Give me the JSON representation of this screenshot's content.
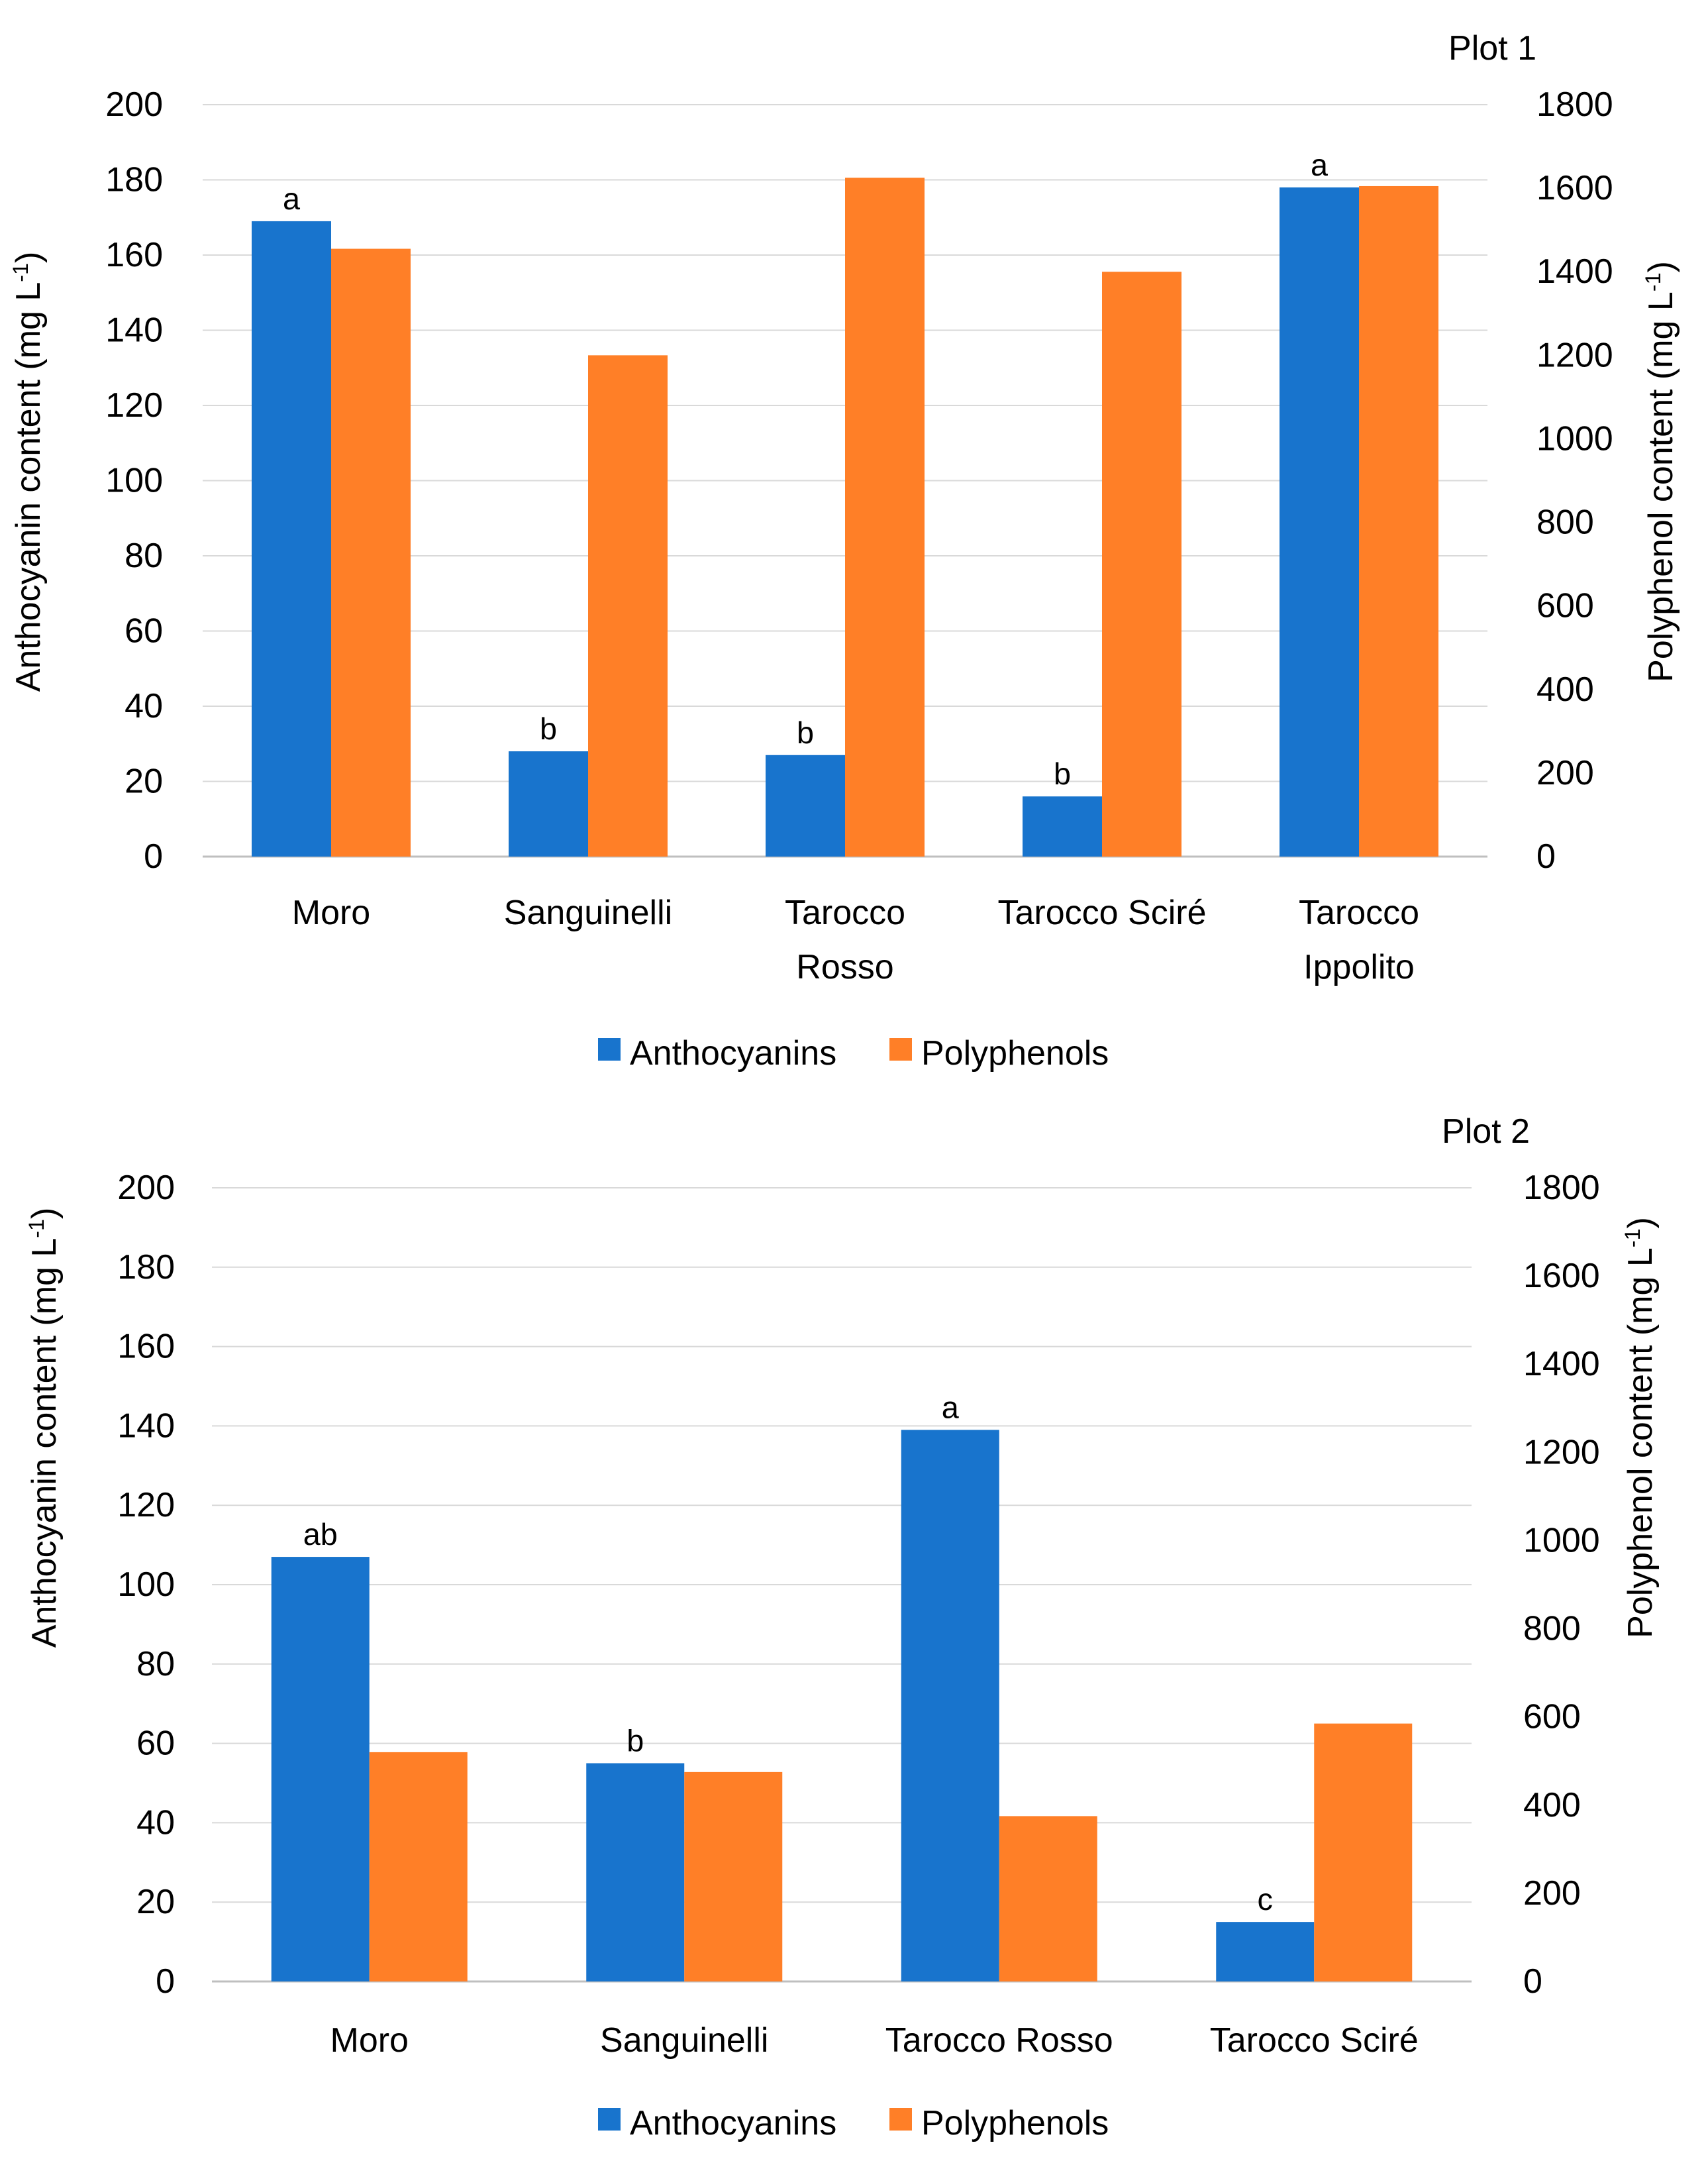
{
  "chart_data": [
    {
      "type": "bar",
      "title": "Plot 1",
      "categories": [
        "Moro",
        "Sanguinelli",
        "Tarocco Rosso",
        "Tarocco Sciré",
        "Tarocco Ippolito"
      ],
      "category_lines": [
        [
          "Moro"
        ],
        [
          "Sanguinelli"
        ],
        [
          "Tarocco",
          "Rosso"
        ],
        [
          "Tarocco Sciré"
        ],
        [
          "Tarocco",
          "Ippolito"
        ]
      ],
      "series": [
        {
          "name": "Anthocyanins",
          "axis": "left",
          "color": "#1874CD",
          "values": [
            169,
            28,
            27,
            16,
            178
          ]
        },
        {
          "name": "Polyphenols",
          "axis": "right",
          "color": "#FF7F27",
          "values": [
            1455,
            1200,
            1625,
            1400,
            1605
          ]
        }
      ],
      "significance_letters": [
        "a",
        "b",
        "b",
        "b",
        "a"
      ],
      "ylabel_left": "Anthocyanin content (mg L",
      "ylabel_right": "Polyphenol content (mg L",
      "ylabel_superscript": "-1",
      "ylabel_close": ")",
      "ylim_left": [
        0,
        200
      ],
      "ylim_right": [
        0,
        1800
      ],
      "yticks_left": [
        "0",
        "20",
        "40",
        "60",
        "80",
        "100",
        "120",
        "140",
        "160",
        "180",
        "200"
      ],
      "yticks_right": [
        "0",
        "200",
        "400",
        "600",
        "800",
        "1000",
        "1200",
        "1400",
        "1600",
        "1800"
      ],
      "grid": true,
      "legend": "bottom"
    },
    {
      "type": "bar",
      "title": "Plot 2",
      "categories": [
        "Moro",
        "Sanguinelli",
        "Tarocco Rosso",
        "Tarocco Sciré"
      ],
      "category_lines": [
        [
          "Moro"
        ],
        [
          "Sanguinelli"
        ],
        [
          "Tarocco Rosso"
        ],
        [
          "Tarocco Sciré"
        ]
      ],
      "series": [
        {
          "name": "Anthocyanins",
          "axis": "left",
          "color": "#1874CD",
          "values": [
            107,
            55,
            139,
            15
          ]
        },
        {
          "name": "Polyphenols",
          "axis": "right",
          "color": "#FF7F27",
          "values": [
            520,
            475,
            375,
            585
          ]
        }
      ],
      "significance_letters": [
        "ab",
        "b",
        "a",
        "c"
      ],
      "ylabel_left": "Anthocyanin content (mg L",
      "ylabel_right": "Polyphenol content (mg L",
      "ylabel_superscript": "-1",
      "ylabel_close": ")",
      "ylim_left": [
        0,
        200
      ],
      "ylim_right": [
        0,
        1800
      ],
      "yticks_left": [
        "0",
        "20",
        "40",
        "60",
        "80",
        "100",
        "120",
        "140",
        "160",
        "180",
        "200"
      ],
      "yticks_right": [
        "0",
        "200",
        "400",
        "600",
        "800",
        "1000",
        "1200",
        "1400",
        "1600",
        "1800"
      ],
      "grid": true,
      "legend": "bottom"
    }
  ]
}
